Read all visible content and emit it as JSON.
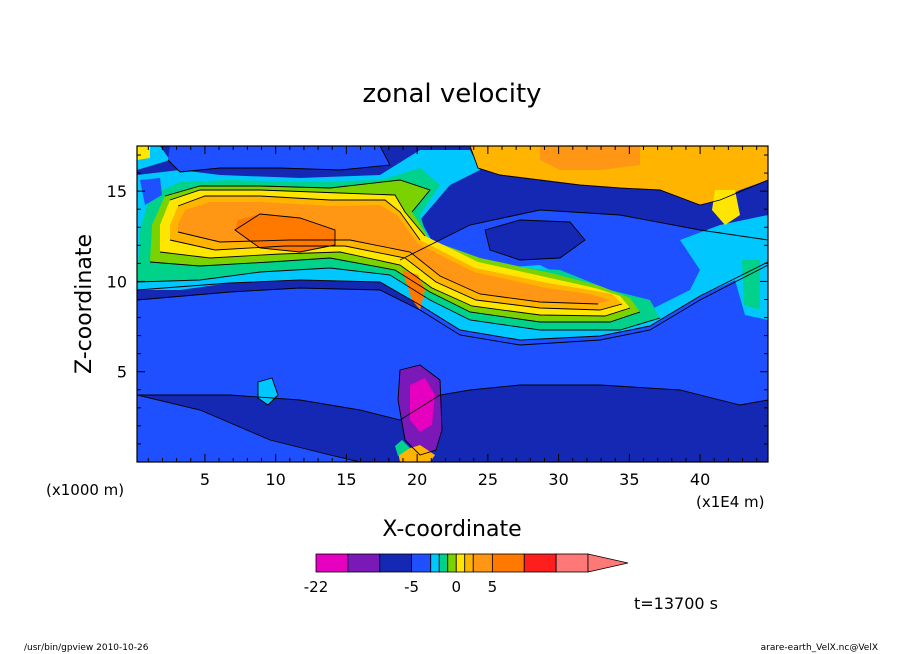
{
  "chart_data": {
    "type": "heatmap",
    "title": "zonal velocity",
    "xlabel": "X-coordinate",
    "ylabel": "Z-coordinate",
    "x_scale_note": "(x1E4 m)",
    "y_scale_note": "(x1000 m)",
    "xlim": [
      0.2,
      44.8
    ],
    "ylim": [
      0,
      17.5
    ],
    "x_ticks": [
      5,
      10,
      15,
      20,
      25,
      30,
      35,
      40
    ],
    "y_ticks": [
      5,
      10,
      15
    ],
    "colorbar": {
      "levels": [
        -22,
        -15,
        -10,
        -5,
        -3,
        -2,
        -1,
        0,
        1,
        2,
        5,
        10,
        15,
        20
      ],
      "labels": [
        "-22",
        "-5",
        "0",
        "5"
      ],
      "label_levels": [
        -22,
        -5,
        0,
        5
      ],
      "colors": [
        "#e600c0",
        "#7a18b8",
        "#1428b4",
        "#1e50ff",
        "#00c8ff",
        "#00d28c",
        "#7ad200",
        "#ffe600",
        "#ffb400",
        "#ff9614",
        "#ff7800",
        "#ff1e1e",
        "#ff7878"
      ],
      "extend_max": true
    },
    "annotation": "t=13700 s"
  },
  "footer": {
    "left": "/usr/bin/gpview   2010-10-26",
    "right": "arare-earth_VelX.nc@VelX"
  }
}
